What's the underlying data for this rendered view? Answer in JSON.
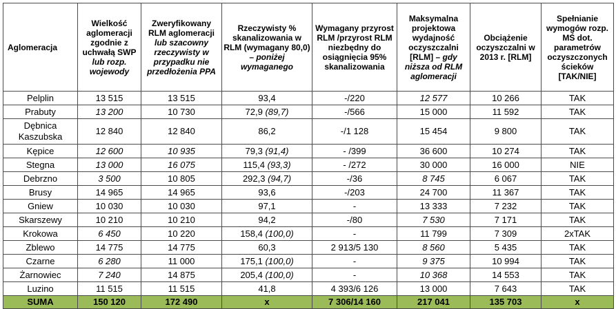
{
  "headers": [
    {
      "text": "Aglomeracja"
    },
    {
      "pre": "Wielkość aglomeracji zgodnie z uchwałą SWP ",
      "em": "lub rozp. wojewody"
    },
    {
      "pre": "Zweryfikowany RLM aglomeracji ",
      "em": "lub szacowny rzeczywisty w przypadku nie przedłożenia PPA"
    },
    {
      "pre": "Rzeczywisty % skanalizowania w RLM (wymagany 80,0) – ",
      "em": "poniżej wymaganego"
    },
    {
      "text": "Wymagany przyrost RLM /przyrost RLM niezbędny do osiągnięcia 95% skanalizowania"
    },
    {
      "pre": "Maksymalna projektowa wydajność oczyszczalni [RLM] – ",
      "em": "gdy niższa od RLM aglomeracji"
    },
    {
      "text": "Obciążenie oczyszczalni w 2013 r. [RLM]"
    },
    {
      "text": "Spełnianie wymogów rozp. MŚ dot. parametrów oczyszczonych ścieków [TAK/NIE]"
    }
  ],
  "rows": [
    {
      "name": "Pelplin",
      "swp": "13 515",
      "swp_italic": false,
      "rlm": "13 515",
      "rlm_italic": false,
      "pct": "93,4",
      "pct_em": "",
      "inc": "-/220",
      "cap": "12 577",
      "cap_italic": true,
      "load": "10 266",
      "ok": "TAK"
    },
    {
      "name": "Prabuty",
      "swp": "13 200",
      "swp_italic": true,
      "rlm": "10 730",
      "rlm_italic": false,
      "pct": "72,9 ",
      "pct_em": "(89,7)",
      "inc": "-/566",
      "cap": "15 000",
      "cap_italic": false,
      "load": "11 592",
      "ok": "TAK"
    },
    {
      "name": "Dębnica Kaszubska",
      "swp": "12 840",
      "swp_italic": false,
      "rlm": "12 840",
      "rlm_italic": false,
      "pct": "86,2",
      "pct_em": "",
      "inc": "-/1 128",
      "cap": "15 454",
      "cap_italic": false,
      "load": "9 800",
      "ok": "TAK",
      "tall": true
    },
    {
      "name": "Kępice",
      "swp": "12 600",
      "swp_italic": true,
      "rlm": "10 935",
      "rlm_italic": true,
      "pct": "79,3 ",
      "pct_em": "(91,4)",
      "inc": "- /399",
      "cap": "36 600",
      "cap_italic": false,
      "load": "10 274",
      "ok": "TAK"
    },
    {
      "name": "Stegna",
      "swp": "13 000",
      "swp_italic": true,
      "rlm": "16 075",
      "rlm_italic": true,
      "pct": "115,4 ",
      "pct_em": "(93,3)",
      "inc": "- /272",
      "cap": "30 000",
      "cap_italic": false,
      "load": "16 000",
      "ok": "NIE"
    },
    {
      "name": "Debrzno",
      "swp": "3 500",
      "swp_italic": true,
      "rlm": "10 805",
      "rlm_italic": false,
      "pct": "292,3 ",
      "pct_em": "(94,7)",
      "inc": "-/36",
      "cap": "8 745",
      "cap_italic": true,
      "load": "6 067",
      "ok": "TAK"
    },
    {
      "name": "Brusy",
      "swp": "14 965",
      "swp_italic": false,
      "rlm": "14 965",
      "rlm_italic": false,
      "pct": "93,6",
      "pct_em": "",
      "inc": "-/203",
      "cap": "24 700",
      "cap_italic": false,
      "load": "11 367",
      "ok": "TAK"
    },
    {
      "name": "Gniew",
      "swp": "10 030",
      "swp_italic": false,
      "rlm": "10 030",
      "rlm_italic": false,
      "pct": "97,1",
      "pct_em": "",
      "inc": "-",
      "cap": "13 333",
      "cap_italic": false,
      "load": "7 232",
      "ok": "TAK"
    },
    {
      "name": "Skarszewy",
      "swp": "10 210",
      "swp_italic": false,
      "rlm": "10 210",
      "rlm_italic": false,
      "pct": "94,2",
      "pct_em": "",
      "inc": "-/80",
      "cap": "7 530",
      "cap_italic": true,
      "load": "7 171",
      "ok": "TAK"
    },
    {
      "name": "Krokowa",
      "swp": "6 450",
      "swp_italic": true,
      "rlm": "10 220",
      "rlm_italic": false,
      "pct": "158,4 ",
      "pct_em": "(100,0)",
      "inc": "-",
      "cap": "11 799",
      "cap_italic": false,
      "load": "7 309",
      "ok": "2xTAK"
    },
    {
      "name": "Zblewo",
      "swp": "14 775",
      "swp_italic": false,
      "rlm": "14 775",
      "rlm_italic": false,
      "pct": "60,3",
      "pct_em": "",
      "inc": "2 913/5 130",
      "cap": "8 560",
      "cap_italic": true,
      "load": "5 435",
      "ok": "TAK"
    },
    {
      "name": "Czarne",
      "swp": "6 280",
      "swp_italic": true,
      "rlm": "11 000",
      "rlm_italic": false,
      "pct": "175,1 ",
      "pct_em": "(100,0)",
      "inc": "-",
      "cap": "9 375",
      "cap_italic": true,
      "load": "10 994",
      "ok": "TAK"
    },
    {
      "name": "Żarnowiec",
      "swp": "7 240",
      "swp_italic": true,
      "rlm": "14 875",
      "rlm_italic": false,
      "pct": "205,4 ",
      "pct_em": "(100,0)",
      "inc": "-",
      "cap": "10 368",
      "cap_italic": true,
      "load": "14 553",
      "ok": "TAK"
    },
    {
      "name": "Luzino",
      "swp": "11 515",
      "swp_italic": false,
      "rlm": "11 515",
      "rlm_italic": false,
      "pct": "41,8",
      "pct_em": "",
      "inc": "4 393/6 126",
      "cap": "13 000",
      "cap_italic": false,
      "load": "7 643",
      "ok": "TAK"
    }
  ],
  "sum": {
    "name": "SUMA",
    "swp": "150 120",
    "rlm": "172 490",
    "pct": "x",
    "inc": "7 306/14 160",
    "cap": "217 041",
    "load": "135 703",
    "ok": "x"
  },
  "colors": {
    "sum_row": "#9bbb59",
    "border": "#4a4a4a"
  }
}
